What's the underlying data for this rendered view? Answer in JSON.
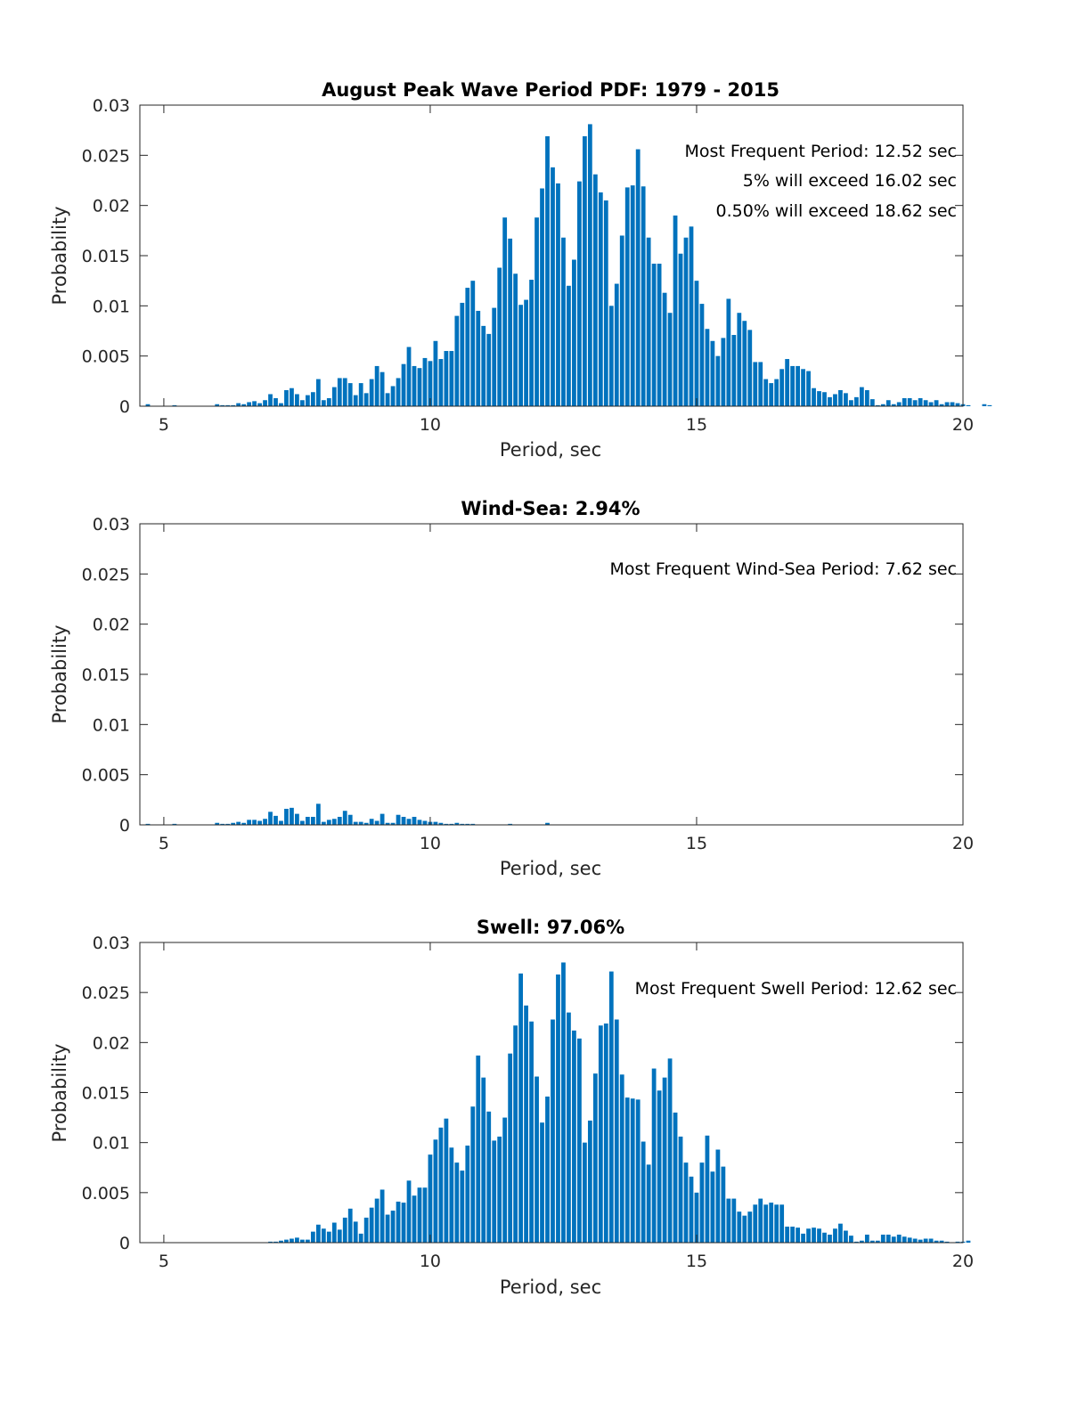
{
  "bar_color": "#0072BD",
  "chart_data": [
    {
      "type": "bar",
      "title": "August Peak Wave Period PDF: 1979 - 2015",
      "xlabel": "Period, sec",
      "ylabel": "Probability",
      "xlim": [
        4.55,
        20
      ],
      "ylim": [
        0,
        0.03
      ],
      "xticks": [
        5,
        10,
        15,
        20
      ],
      "yticks": [
        0,
        0.005,
        0.01,
        0.015,
        0.02,
        0.025,
        0.03
      ],
      "ytick_labels": [
        "0",
        "0.005",
        "0.01",
        "0.015",
        "0.02",
        "0.025",
        "0.03"
      ],
      "annotations": [
        "Most Frequent Period: 12.52 sec",
        "5% will exceed 16.02 sec",
        "0.50% will exceed 18.62 sec"
      ],
      "x_start": 4.7,
      "bin_width": 0.1,
      "values": [
        0.0002,
        0,
        0,
        0,
        0,
        0.0001,
        0,
        0,
        0,
        0,
        0,
        0,
        0,
        0.0002,
        0.0001,
        0.0001,
        0.0001,
        0.0003,
        0.0002,
        0.0004,
        0.0005,
        0.0003,
        0.0006,
        0.0012,
        0.0008,
        0.0003,
        0.0016,
        0.0018,
        0.0012,
        0.0006,
        0.0011,
        0.0014,
        0.0027,
        0.0006,
        0.0008,
        0.0019,
        0.0028,
        0.0028,
        0.0023,
        0.0011,
        0.0023,
        0.0013,
        0.0027,
        0.004,
        0.0034,
        0.0013,
        0.002,
        0.0028,
        0.0042,
        0.0059,
        0.004,
        0.0038,
        0.0048,
        0.0045,
        0.0065,
        0.0047,
        0.0055,
        0.0055,
        0.009,
        0.0103,
        0.0118,
        0.0125,
        0.0095,
        0.008,
        0.0072,
        0.0098,
        0.0138,
        0.0188,
        0.0167,
        0.0132,
        0.0101,
        0.0106,
        0.0126,
        0.0188,
        0.0217,
        0.0269,
        0.0238,
        0.0222,
        0.0168,
        0.012,
        0.0146,
        0.0224,
        0.0269,
        0.0281,
        0.0231,
        0.0213,
        0.0205,
        0.01,
        0.0122,
        0.017,
        0.0218,
        0.022,
        0.0256,
        0.0219,
        0.0168,
        0.0142,
        0.0142,
        0.0113,
        0.0093,
        0.019,
        0.0152,
        0.0168,
        0.0179,
        0.0125,
        0.0102,
        0.0077,
        0.0065,
        0.005,
        0.0068,
        0.0107,
        0.0071,
        0.0093,
        0.0085,
        0.0076,
        0.0044,
        0.0044,
        0.0027,
        0.0023,
        0.0027,
        0.0037,
        0.0047,
        0.004,
        0.004,
        0.0037,
        0.0035,
        0.0018,
        0.0015,
        0.0014,
        0.0009,
        0.0012,
        0.0016,
        0.0013,
        0.0006,
        0.0009,
        0.0019,
        0.0016,
        0.0007,
        0.0001,
        0.0002,
        0.0006,
        0.0002,
        0.0004,
        0.0008,
        0.0008,
        0.0006,
        0.0008,
        0.0006,
        0.0004,
        0.0006,
        0.0002,
        0.0004,
        0.0004,
        0.0003,
        0.0002,
        0.0001,
        0,
        0,
        0.0002,
        0.0001
      ]
    },
    {
      "type": "bar",
      "title": "Wind-Sea: 2.94%",
      "xlabel": "Period, sec",
      "ylabel": "Probability",
      "xlim": [
        4.55,
        20
      ],
      "ylim": [
        0,
        0.03
      ],
      "xticks": [
        5,
        10,
        15,
        20
      ],
      "yticks": [
        0,
        0.005,
        0.01,
        0.015,
        0.02,
        0.025,
        0.03
      ],
      "ytick_labels": [
        "0",
        "0.005",
        "0.01",
        "0.015",
        "0.02",
        "0.025",
        "0.03"
      ],
      "annotations": [
        "Most Frequent Wind-Sea Period: 7.62 sec"
      ],
      "x_start": 4.7,
      "bin_width": 0.1,
      "values": [
        0.0001,
        0,
        0,
        0,
        0,
        0.0001,
        0,
        0,
        0,
        0,
        0,
        0,
        0,
        0.0002,
        0.0001,
        0.0001,
        0.0002,
        0.0003,
        0.0002,
        0.0005,
        0.0005,
        0.0004,
        0.0006,
        0.0013,
        0.0009,
        0.0004,
        0.0016,
        0.0017,
        0.0011,
        0.0004,
        0.0008,
        0.0008,
        0.0021,
        0.0003,
        0.0005,
        0.0006,
        0.0008,
        0.0014,
        0.001,
        0.0003,
        0.0003,
        0.0002,
        0.0006,
        0.0004,
        0.0011,
        0.0002,
        0.0002,
        0.001,
        0.0008,
        0.0006,
        0.0008,
        0.0005,
        0.0004,
        0.0003,
        0.0003,
        0.0002,
        0.0001,
        0.0001,
        0.0002,
        0.0001,
        0.0001,
        0.0001,
        0,
        0,
        0,
        0,
        0,
        0,
        0.0001,
        0,
        0,
        0,
        0,
        0,
        0,
        0.0002,
        0,
        0,
        0,
        0,
        0,
        0,
        0,
        0,
        0,
        0,
        0,
        0,
        0,
        0,
        0,
        0,
        0,
        0,
        0,
        0,
        0,
        0,
        0,
        0,
        0,
        0,
        0,
        0,
        0,
        0,
        0,
        0,
        0,
        0,
        0,
        0,
        0,
        0,
        0,
        0,
        0,
        0,
        0,
        0,
        0,
        0,
        0,
        0,
        0,
        0,
        0,
        0,
        0,
        0,
        0,
        0,
        0,
        0,
        0,
        0,
        0,
        0,
        0,
        0,
        0,
        0,
        0,
        0,
        0,
        0,
        0,
        0,
        0,
        0,
        0,
        0,
        0,
        0,
        0,
        0,
        0,
        0,
        0,
        0
      ]
    },
    {
      "type": "bar",
      "title": "Swell: 97.06%",
      "xlabel": "Period, sec",
      "ylabel": "Probability",
      "xlim": [
        4.55,
        20
      ],
      "ylim": [
        0,
        0.03
      ],
      "xticks": [
        5,
        10,
        15,
        20
      ],
      "yticks": [
        0,
        0.005,
        0.01,
        0.015,
        0.02,
        0.025,
        0.03
      ],
      "ytick_labels": [
        "0",
        "0.005",
        "0.01",
        "0.015",
        "0.02",
        "0.025",
        "0.03"
      ],
      "annotations": [
        "Most Frequent Swell Period: 12.62 sec"
      ],
      "x_start": 4.7,
      "bin_width": 0.1,
      "values": [
        0,
        0,
        0,
        0,
        0,
        0,
        0,
        0,
        0,
        0,
        0,
        0,
        0,
        0,
        0,
        0,
        0,
        0,
        0,
        0,
        0,
        0,
        0,
        0.0001,
        0.0001,
        0.0002,
        0.0003,
        0.0004,
        0.0005,
        0.0003,
        0.0003,
        0.0011,
        0.0018,
        0.0014,
        0.0011,
        0.002,
        0.0013,
        0.0025,
        0.0034,
        0.0021,
        0.0009,
        0.0025,
        0.0035,
        0.0044,
        0.0053,
        0.0028,
        0.0032,
        0.0041,
        0.004,
        0.0062,
        0.0047,
        0.0055,
        0.0055,
        0.0088,
        0.0103,
        0.0115,
        0.0124,
        0.0095,
        0.008,
        0.0072,
        0.0097,
        0.0136,
        0.0187,
        0.0165,
        0.0131,
        0.0102,
        0.0106,
        0.0125,
        0.0189,
        0.0217,
        0.0269,
        0.0237,
        0.0221,
        0.0166,
        0.012,
        0.0146,
        0.0223,
        0.0268,
        0.028,
        0.023,
        0.0212,
        0.0204,
        0.01,
        0.0122,
        0.0169,
        0.0217,
        0.0219,
        0.0271,
        0.0223,
        0.0168,
        0.0145,
        0.0144,
        0.0143,
        0.0101,
        0.0078,
        0.0174,
        0.0152,
        0.0165,
        0.0184,
        0.013,
        0.0106,
        0.008,
        0.0066,
        0.005,
        0.008,
        0.0107,
        0.0071,
        0.0093,
        0.0076,
        0.0044,
        0.0044,
        0.0031,
        0.0027,
        0.0031,
        0.0038,
        0.0044,
        0.0038,
        0.004,
        0.0038,
        0.0038,
        0.0016,
        0.0016,
        0.0015,
        0.0009,
        0.0014,
        0.0015,
        0.0014,
        0.001,
        0.0008,
        0.0014,
        0.0019,
        0.0012,
        0.0007,
        0.0001,
        0.0002,
        0.0008,
        0.0002,
        0.0002,
        0.0008,
        0.0008,
        0.0006,
        0.0008,
        0.0006,
        0.0005,
        0.0004,
        0.0003,
        0.0004,
        0.0004,
        0.0002,
        0.0002,
        0.0001,
        0,
        0.0001,
        0.0001,
        0.0002
      ]
    }
  ]
}
